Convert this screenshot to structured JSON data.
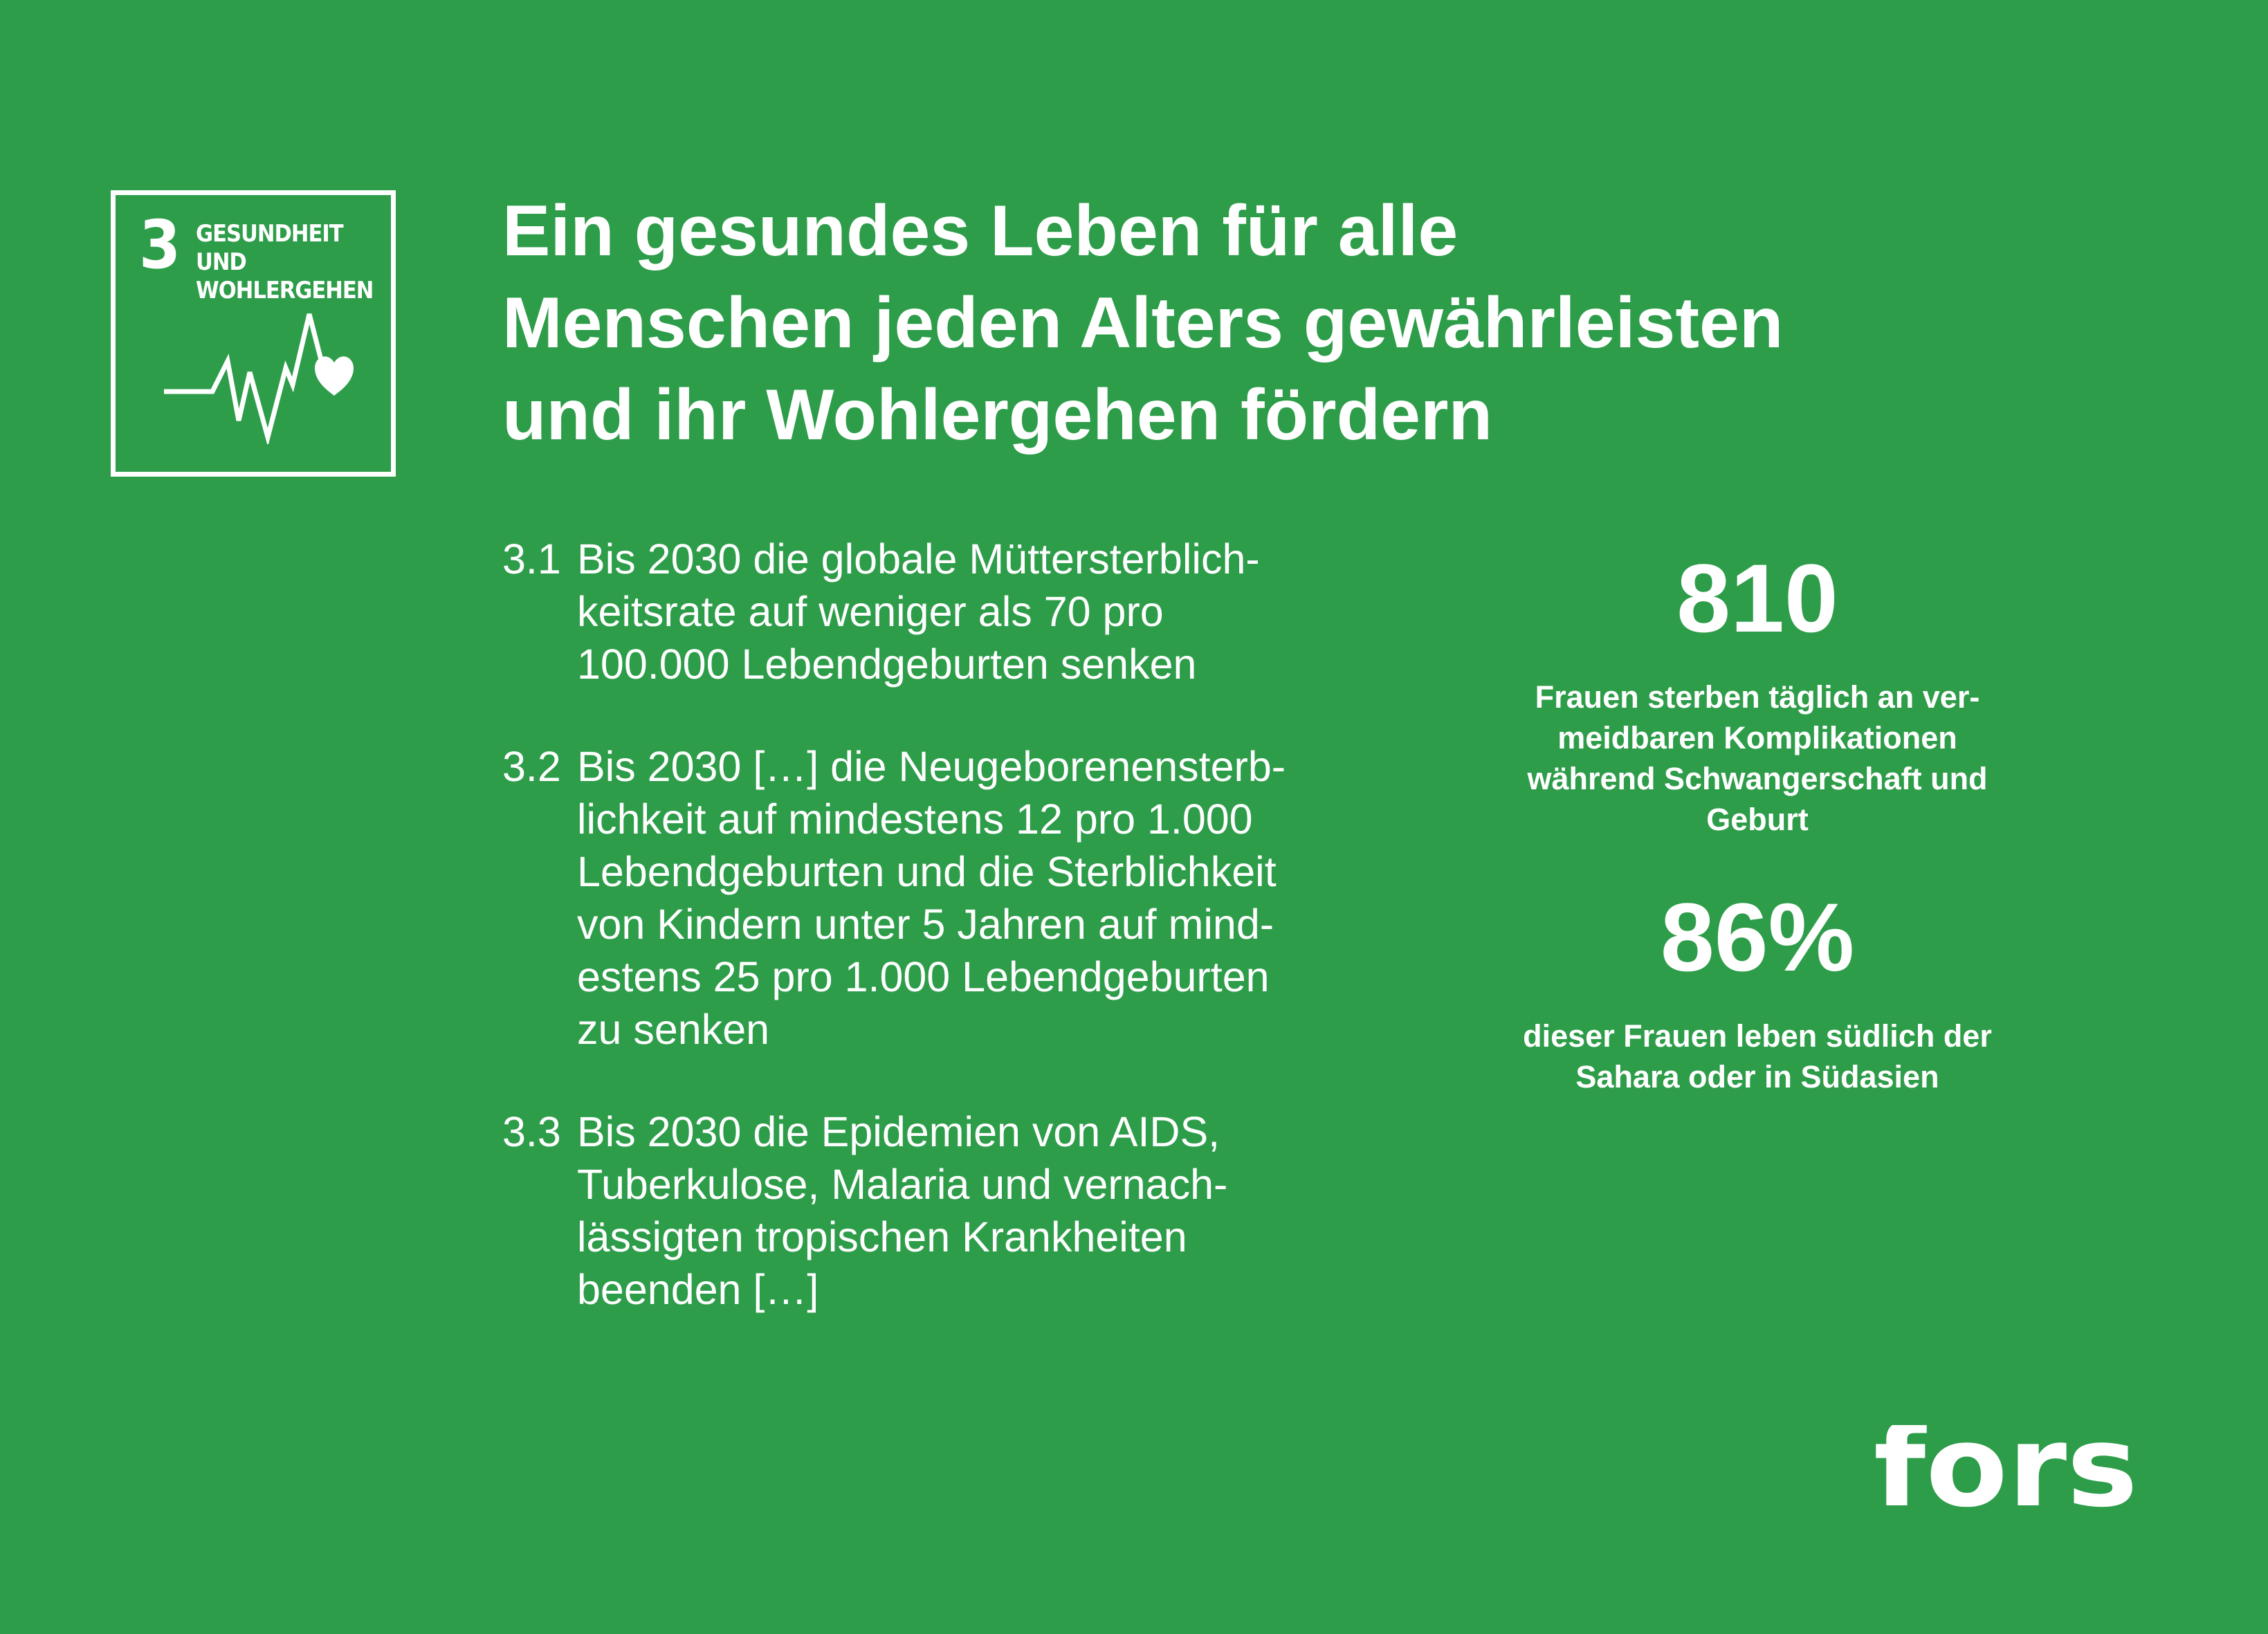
{
  "badge": {
    "number": "3",
    "title_line1": "GESUNDHEIT UND",
    "title_line2": "WOHLERGEHEN",
    "icon": "heartbeat-heart-icon"
  },
  "headline": {
    "lines": [
      "Ein gesundes Leben für alle",
      "Menschen jeden Alters gewährleisten",
      "und ihr Wohlergehen fördern"
    ]
  },
  "targets": [
    {
      "number": "3.1",
      "lines": [
        "Bis 2030 die globale Müttersterblich-",
        "keitsrate auf weniger als 70 pro",
        "100.000 Lebendgeburten senken"
      ]
    },
    {
      "number": "3.2",
      "lines": [
        "Bis 2030 […] die Neugeborenensterb-",
        "lichkeit auf mindestens 12 pro 1.000",
        "Lebendgeburten und die Sterblichkeit",
        "von Kindern unter 5 Jahren auf mind-",
        "estens 25 pro 1.000 Lebendgeburten",
        "zu senken"
      ]
    },
    {
      "number": "3.3",
      "lines": [
        "Bis 2030 die Epidemien von AIDS,",
        "Tuberkulose, Malaria und vernach-",
        "lässigten tropischen Krankheiten",
        "beenden […]"
      ]
    }
  ],
  "stats": [
    {
      "value": "810",
      "lines": [
        "Frauen sterben täglich an ver-",
        "meidbaren Komplikationen",
        "während Schwangerschaft und",
        "Geburt"
      ]
    },
    {
      "value": "86%",
      "lines": [
        "dieser Frauen leben südlich der",
        "Sahara oder in Südasien"
      ]
    }
  ],
  "logo": {
    "text": "fors"
  },
  "colors": {
    "background": "#2e9d4a",
    "foreground": "#ffffff"
  }
}
